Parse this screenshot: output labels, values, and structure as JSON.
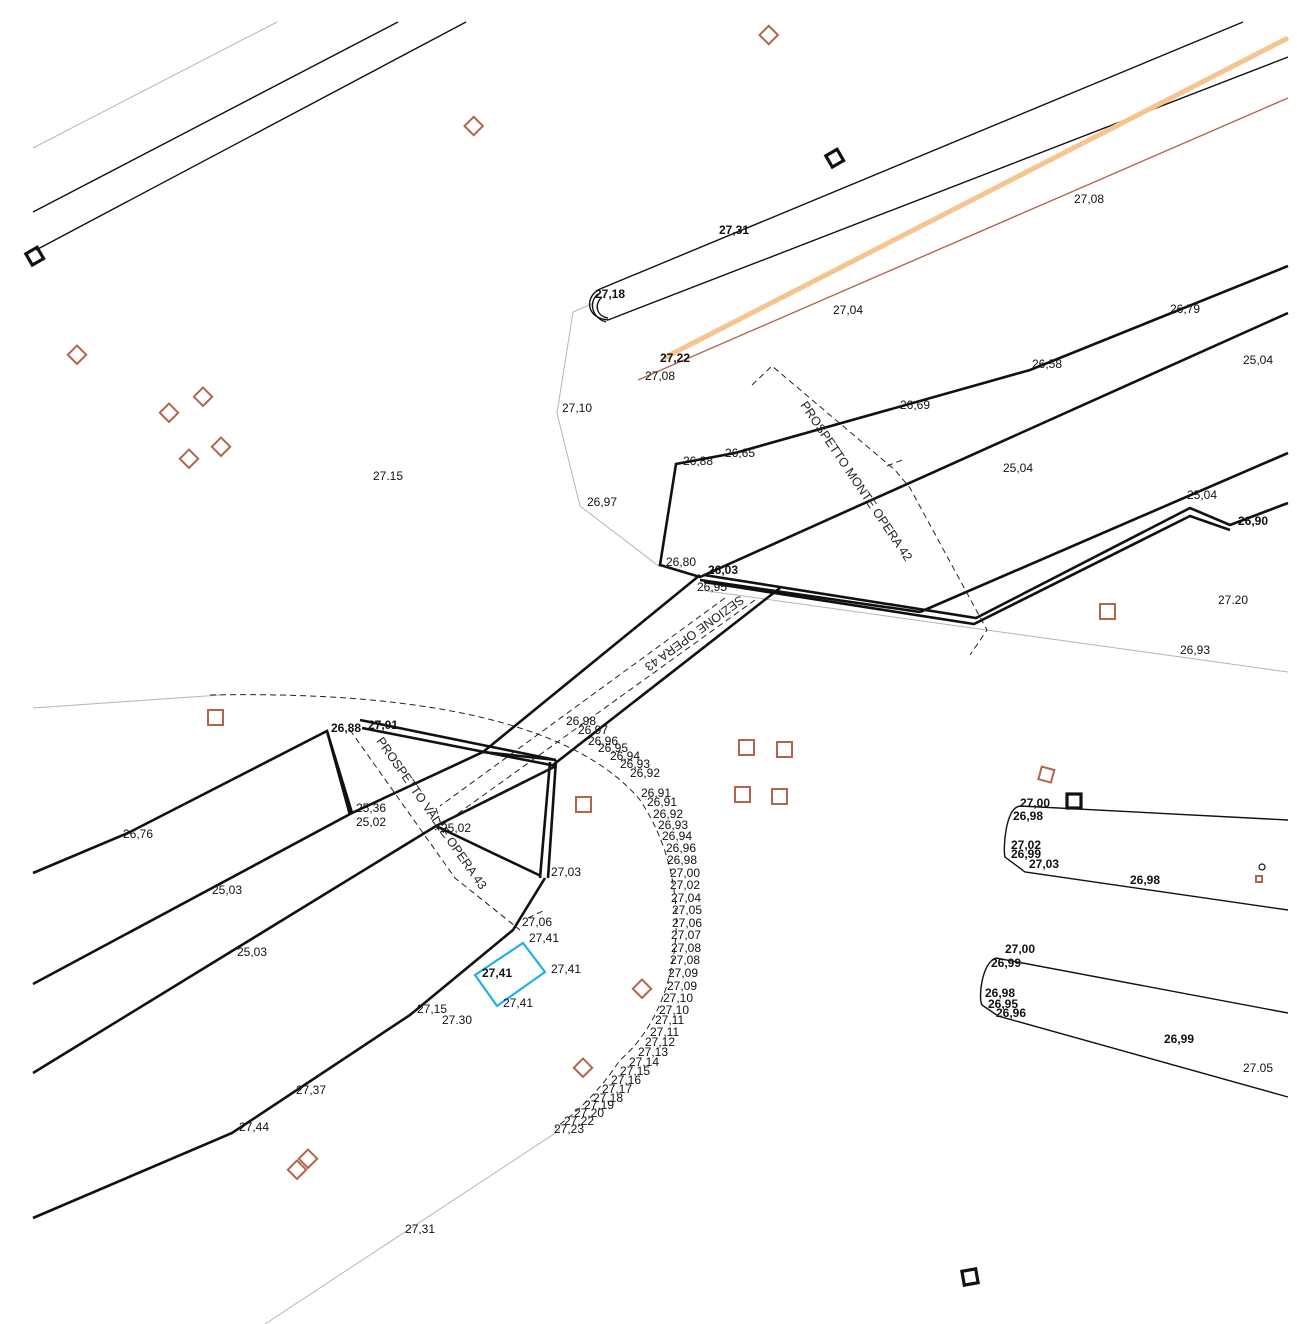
{
  "colors": {
    "tree_symbol": "#b2644c",
    "highlight_rect": "#1fb0e8",
    "pipe_orange": "#f6c48e",
    "pipe_brown": "#b06a50",
    "ink": "#111111"
  },
  "labels": {
    "sezione_opera_43": "SEZIONE OPERA 43",
    "prospetto_monte_opera_42": "PROSPETTO MONTE OPERA 42",
    "prospetto_valle_opera_43": "PROSPETTO VALLE OPERA 43"
  },
  "elevations": [
    "27,31",
    "27,18",
    "27,22",
    "27,04",
    "27,08",
    "26,79",
    "26,58",
    "25,04",
    "26,69",
    "27,10",
    "26,88",
    "26,65",
    "25,04",
    "25,04",
    "26,90",
    "27.15",
    "26,97",
    "26,80",
    "26,03",
    "26,95",
    "27.20",
    "26,93",
    "27,01",
    "26,88",
    "26,76",
    "25,36",
    "25,02",
    "25,03",
    "25,02",
    "27,03",
    "25,03",
    "27,06",
    "27,41",
    "27,41",
    "27,41",
    "27,41",
    "27,15",
    "27.30",
    "27,37",
    "27,44",
    "27,31",
    "26,98",
    "26,97",
    "26,96",
    "26,95",
    "26,94",
    "26,93",
    "26,92",
    "26,91",
    "26,91",
    "26,92",
    "26,93",
    "26,94",
    "26,96",
    "26,98",
    "27,00",
    "27,02",
    "27,04",
    "27,05",
    "27,06",
    "27,07",
    "27,08",
    "27,08",
    "27,09",
    "27,09",
    "27,10",
    "27,10",
    "27,11",
    "27,11",
    "27,12",
    "27,13",
    "27,14",
    "27,15",
    "27,16",
    "27,17",
    "27,18",
    "27,19",
    "27,20",
    "27,22",
    "27,23",
    "27,00",
    "26,98",
    "27,02",
    "26,99",
    "27,03",
    "26,98",
    "27,00",
    "26,99",
    "26,98",
    "26,95",
    "26,96",
    "26,99",
    "27.05",
    "27,08"
  ]
}
